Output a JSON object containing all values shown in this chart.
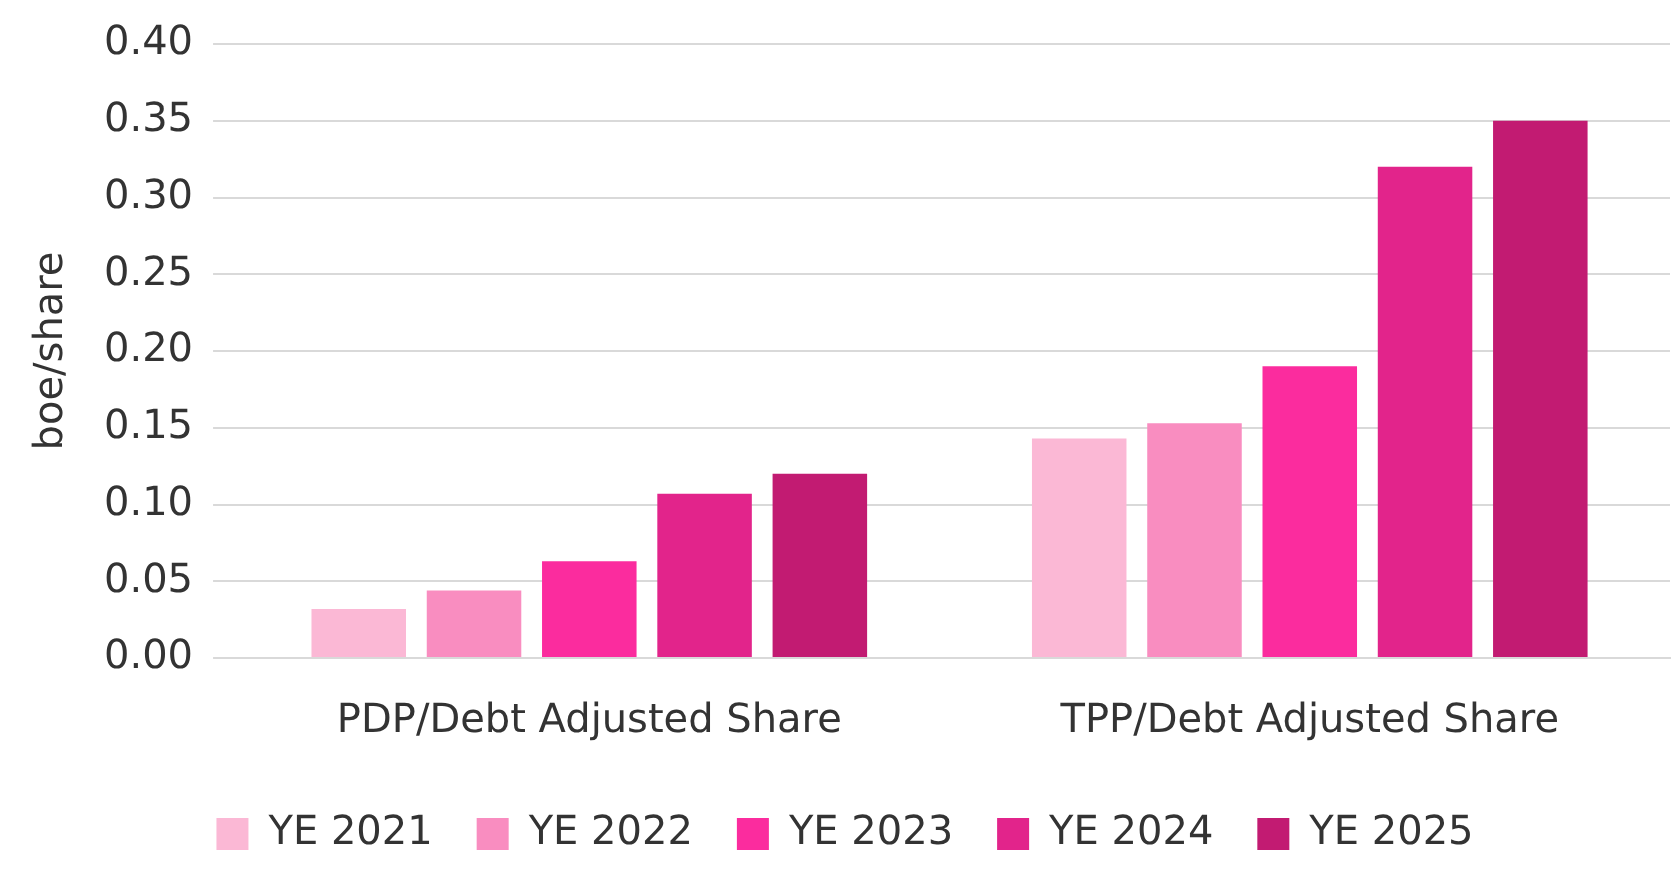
{
  "chart_data": {
    "type": "bar",
    "ylabel": "boe/share",
    "categories": [
      "PDP/Debt Adjusted Share",
      "TPP/Debt Adjusted Share"
    ],
    "series": [
      {
        "name": "YE 2021",
        "color": "#fbb8d5",
        "values": [
          0.032,
          0.143
        ]
      },
      {
        "name": "YE 2022",
        "color": "#f98dc0",
        "values": [
          0.044,
          0.153
        ]
      },
      {
        "name": "YE 2023",
        "color": "#fb2c9e",
        "values": [
          0.063,
          0.19
        ]
      },
      {
        "name": "YE 2024",
        "color": "#e2248b",
        "values": [
          0.107,
          0.32
        ]
      },
      {
        "name": "YE 2025",
        "color": "#c21b72",
        "values": [
          0.12,
          0.35
        ]
      }
    ],
    "ylim": [
      0,
      0.4
    ],
    "yticks": [
      {
        "value": 0,
        "label": "0.00"
      },
      {
        "value": 0.05,
        "label": "0.05"
      },
      {
        "value": 0.1,
        "label": "0.10"
      },
      {
        "value": 0.15,
        "label": "0.15"
      },
      {
        "value": 0.2,
        "label": "0.20"
      },
      {
        "value": 0.25,
        "label": "0.25"
      },
      {
        "value": 0.3,
        "label": "0.30"
      },
      {
        "value": 0.35,
        "label": "0.35"
      },
      {
        "value": 0.4,
        "label": "0.40"
      }
    ],
    "grid": "y",
    "legend": "bottom"
  }
}
